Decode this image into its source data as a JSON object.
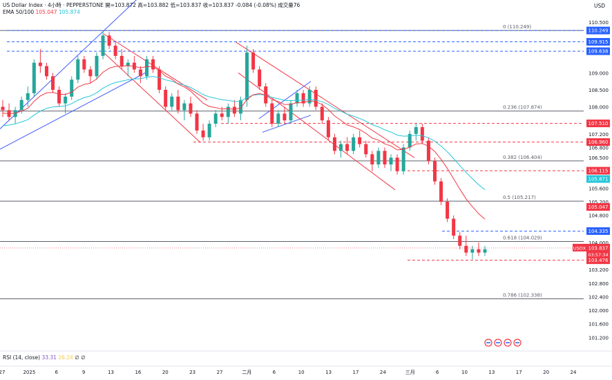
{
  "header": {
    "title": "US Dollar Index · 4小時 · PEPPERSTONE",
    "ohlc": "開=103.872  高=103.882  低=103.837  收=103.837  -0.084 (-0.08%)  成交量76",
    "ema_label": "EMA 50/100",
    "ema50": "105.047",
    "ema100": "105.874",
    "currency": "USD"
  },
  "rsi": {
    "label": "RSI (14, close)",
    "value1": "33.31",
    "value2": "26.24",
    "zeros": "∅  ∅"
  },
  "colors": {
    "up": "#26a69a",
    "down": "#f23645",
    "ema50": "#f23645",
    "ema100": "#26c6da",
    "channel_blue": "#3d5afe",
    "channel_red": "#f23645",
    "fib": "#131722",
    "dash_blue": "#2962ff",
    "dash_red": "#f23645"
  },
  "chart_data": {
    "type": "candlestick",
    "ylim": [
      100.8,
      110.7
    ],
    "y_ticks": [
      "110.500",
      "109.600",
      "109.000",
      "108.500",
      "108.000",
      "107.200",
      "106.800",
      "106.500",
      "105.600",
      "105.200",
      "104.800",
      "104.000",
      "103.200",
      "102.800",
      "102.400",
      "102.000",
      "101.600",
      "101.200"
    ],
    "x_ticks": [
      "27",
      "2025",
      "6",
      "9",
      "13",
      "16",
      "20",
      "23",
      "27",
      "二月",
      "6",
      "10",
      "13",
      "17",
      "24",
      "三月",
      "6",
      "10",
      "13",
      "17",
      "20",
      "24"
    ],
    "fib_levels": [
      {
        "label": "0 (110.249)",
        "value": 110.249
      },
      {
        "label": "0.236 (107.874)",
        "value": 107.874
      },
      {
        "label": "0.382 (106.404)",
        "value": 106.404
      },
      {
        "label": "0.5 (105.217)",
        "value": 105.217
      },
      {
        "label": "0.618 (104.029)",
        "value": 104.029
      },
      {
        "label": "0.786 (102.338)",
        "value": 102.338
      }
    ],
    "price_tags": [
      {
        "label": "110.249",
        "value": 110.249,
        "color": "#2962ff"
      },
      {
        "label": "109.915",
        "value": 109.915,
        "color": "#2962ff"
      },
      {
        "label": "109.638",
        "value": 109.638,
        "color": "#2962ff"
      },
      {
        "label": "107.510",
        "value": 107.51,
        "color": "#f23645"
      },
      {
        "label": "106.960",
        "value": 106.96,
        "color": "#f23645"
      },
      {
        "label": "106.115",
        "value": 106.115,
        "color": "#f23645"
      },
      {
        "label": "105.871",
        "value": 105.871,
        "color": "#26c6da"
      },
      {
        "label": "105.047",
        "value": 105.047,
        "color": "#f23645"
      },
      {
        "label": "104.335",
        "value": 104.335,
        "color": "#2962ff"
      },
      {
        "label": "103.837",
        "value": 103.837,
        "color": "#f23645",
        "symbol": "USDX",
        "countdown": "03:57:34"
      },
      {
        "label": "103.476",
        "value": 103.476,
        "color": "#f23645"
      }
    ],
    "candles": [
      [
        108.0,
        108.2,
        107.7,
        107.9
      ],
      [
        107.9,
        108.1,
        107.6,
        107.7
      ],
      [
        107.7,
        108.0,
        107.5,
        107.9
      ],
      [
        107.9,
        108.3,
        107.8,
        108.2
      ],
      [
        108.2,
        108.6,
        108.0,
        108.4
      ],
      [
        108.4,
        109.4,
        108.3,
        109.3
      ],
      [
        109.3,
        109.7,
        109.0,
        109.2
      ],
      [
        109.2,
        109.3,
        108.8,
        108.9
      ],
      [
        108.9,
        109.0,
        108.4,
        108.5
      ],
      [
        108.5,
        108.6,
        108.0,
        108.1
      ],
      [
        108.1,
        108.4,
        107.8,
        108.3
      ],
      [
        108.3,
        108.9,
        108.2,
        108.8
      ],
      [
        108.8,
        109.5,
        108.7,
        109.4
      ],
      [
        109.4,
        109.5,
        109.0,
        109.1
      ],
      [
        109.1,
        109.2,
        108.7,
        108.9
      ],
      [
        108.9,
        109.6,
        108.8,
        109.5
      ],
      [
        109.5,
        110.25,
        109.4,
        110.1
      ],
      [
        110.1,
        110.2,
        109.7,
        109.8
      ],
      [
        109.8,
        109.9,
        109.4,
        109.5
      ],
      [
        109.5,
        109.7,
        109.1,
        109.2
      ],
      [
        109.2,
        109.4,
        108.9,
        109.3
      ],
      [
        109.3,
        109.5,
        109.0,
        109.1
      ],
      [
        109.1,
        109.2,
        108.7,
        108.9
      ],
      [
        108.9,
        109.5,
        108.8,
        109.4
      ],
      [
        109.4,
        109.5,
        109.0,
        109.1
      ],
      [
        109.1,
        109.2,
        108.4,
        108.5
      ],
      [
        108.5,
        108.6,
        107.9,
        108.0
      ],
      [
        108.0,
        108.4,
        107.9,
        108.3
      ],
      [
        108.3,
        108.5,
        107.8,
        107.9
      ],
      [
        107.9,
        108.2,
        107.6,
        108.1
      ],
      [
        108.1,
        108.3,
        107.7,
        107.8
      ],
      [
        107.8,
        107.9,
        107.2,
        107.3
      ],
      [
        107.3,
        107.5,
        107.0,
        107.1
      ],
      [
        107.1,
        107.6,
        107.0,
        107.5
      ],
      [
        107.5,
        107.9,
        107.4,
        107.8
      ],
      [
        107.8,
        108.0,
        107.6,
        107.7
      ],
      [
        107.7,
        108.1,
        107.5,
        108.0
      ],
      [
        108.0,
        108.2,
        107.7,
        107.8
      ],
      [
        107.8,
        108.3,
        107.6,
        108.2
      ],
      [
        108.2,
        109.8,
        108.0,
        109.6
      ],
      [
        109.6,
        109.7,
        109.0,
        109.1
      ],
      [
        109.1,
        109.2,
        108.5,
        108.6
      ],
      [
        108.6,
        108.7,
        108.0,
        108.1
      ],
      [
        108.1,
        108.2,
        107.4,
        107.5
      ],
      [
        107.5,
        107.9,
        107.4,
        107.8
      ],
      [
        107.8,
        108.0,
        107.5,
        107.6
      ],
      [
        107.6,
        108.2,
        107.5,
        108.1
      ],
      [
        108.1,
        108.5,
        108.0,
        108.4
      ],
      [
        108.4,
        108.5,
        108.0,
        108.1
      ],
      [
        108.1,
        108.6,
        108.0,
        108.5
      ],
      [
        108.5,
        108.6,
        107.9,
        108.0
      ],
      [
        108.0,
        108.1,
        107.5,
        107.6
      ],
      [
        107.6,
        107.7,
        107.0,
        107.1
      ],
      [
        107.1,
        107.2,
        106.6,
        106.7
      ],
      [
        106.7,
        107.0,
        106.5,
        106.9
      ],
      [
        106.9,
        107.1,
        106.6,
        106.7
      ],
      [
        106.7,
        107.2,
        106.6,
        107.1
      ],
      [
        107.1,
        107.3,
        106.8,
        106.9
      ],
      [
        106.9,
        107.0,
        106.5,
        106.6
      ],
      [
        106.6,
        106.7,
        106.1,
        106.3
      ],
      [
        106.3,
        106.8,
        106.2,
        106.7
      ],
      [
        106.7,
        106.8,
        106.2,
        106.3
      ],
      [
        106.3,
        106.6,
        106.1,
        106.5
      ],
      [
        106.5,
        106.6,
        106.0,
        106.1
      ],
      [
        106.1,
        106.9,
        106.0,
        106.8
      ],
      [
        106.8,
        107.3,
        106.7,
        107.2
      ],
      [
        107.2,
        107.5,
        107.0,
        107.4
      ],
      [
        107.4,
        107.5,
        106.9,
        107.0
      ],
      [
        107.0,
        107.1,
        106.3,
        106.4
      ],
      [
        106.4,
        106.5,
        105.7,
        105.8
      ],
      [
        105.8,
        105.9,
        105.1,
        105.2
      ],
      [
        105.2,
        105.3,
        104.6,
        104.7
      ],
      [
        104.7,
        104.8,
        104.1,
        104.2
      ],
      [
        104.2,
        104.3,
        103.8,
        103.9
      ],
      [
        103.9,
        104.2,
        103.6,
        103.7
      ],
      [
        103.7,
        103.9,
        103.5,
        103.8
      ],
      [
        103.8,
        104.0,
        103.6,
        103.7
      ],
      [
        103.7,
        103.9,
        103.6,
        103.8
      ]
    ]
  }
}
